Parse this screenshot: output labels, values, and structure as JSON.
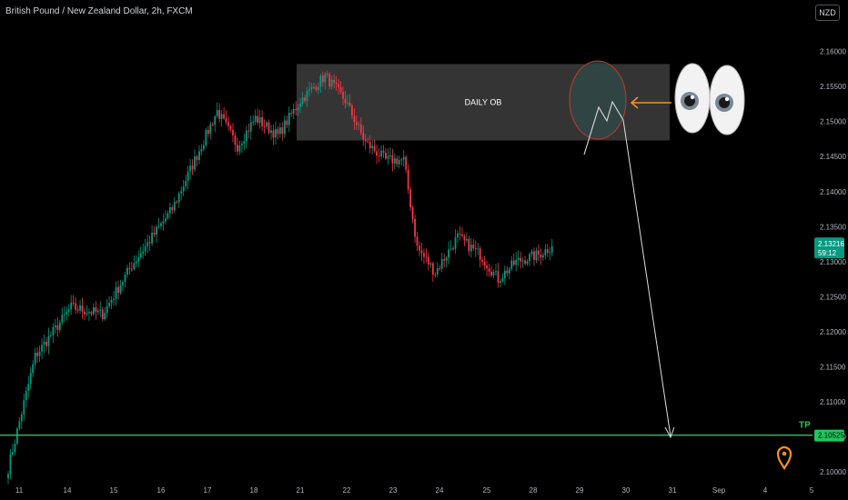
{
  "header": {
    "symbol_title": "British Pound / New Zealand Dollar, 2h, FXCM",
    "currency": "NZD"
  },
  "colors": {
    "background": "#000000",
    "up": "#089981",
    "down": "#f23645",
    "tp_line": "#22c55e",
    "zone": "#3a3a3a",
    "arrow": "#dddddd",
    "pointer": "#f7931a"
  },
  "annotations": {
    "zone_label": "DAILY OB",
    "tp_label": "TP",
    "eyes": "👀",
    "pin_icon": "map-pin-icon"
  },
  "chart_data": {
    "type": "candlestick",
    "title": "British Pound / New Zealand Dollar, 2h, FXCM",
    "xlabel": "",
    "ylabel": "",
    "x_ticks": [
      "11",
      "14",
      "15",
      "16",
      "17",
      "18",
      "21",
      "22",
      "23",
      "24",
      "25",
      "28",
      "29",
      "30",
      "31",
      "Sep",
      "4",
      "5"
    ],
    "y_ticks": [
      "2.16000",
      "2.15500",
      "2.15000",
      "2.14500",
      "2.14000",
      "2.13500",
      "2.13000",
      "2.12500",
      "2.12000",
      "2.11500",
      "2.11000",
      "2.10500",
      "2.10000"
    ],
    "ylim": [
      2.0995,
      2.1628
    ],
    "grid": false,
    "current_price": "2.13216",
    "countdown": "59:12",
    "tp_price": "2.10525",
    "zone": {
      "label": "DAILY OB",
      "top": 2.1582,
      "bottom": 2.1473
    },
    "anchors_close": [
      [
        0,
        2.1005
      ],
      [
        12,
        2.1165
      ],
      [
        28,
        2.1235
      ],
      [
        42,
        2.1225
      ],
      [
        55,
        2.1295
      ],
      [
        64,
        2.1335
      ],
      [
        73,
        2.1375
      ],
      [
        83,
        2.1445
      ],
      [
        93,
        2.1515
      ],
      [
        102,
        2.1465
      ],
      [
        110,
        2.1505
      ],
      [
        120,
        2.148
      ],
      [
        130,
        2.153
      ],
      [
        141,
        2.1565
      ],
      [
        150,
        2.153
      ],
      [
        159,
        2.147
      ],
      [
        168,
        2.1445
      ],
      [
        176,
        2.1445
      ],
      [
        182,
        2.132
      ],
      [
        190,
        2.1285
      ],
      [
        200,
        2.1335
      ],
      [
        210,
        2.131
      ],
      [
        218,
        2.1275
      ],
      [
        226,
        2.13
      ],
      [
        236,
        2.131
      ],
      [
        242,
        2.1322
      ]
    ]
  }
}
